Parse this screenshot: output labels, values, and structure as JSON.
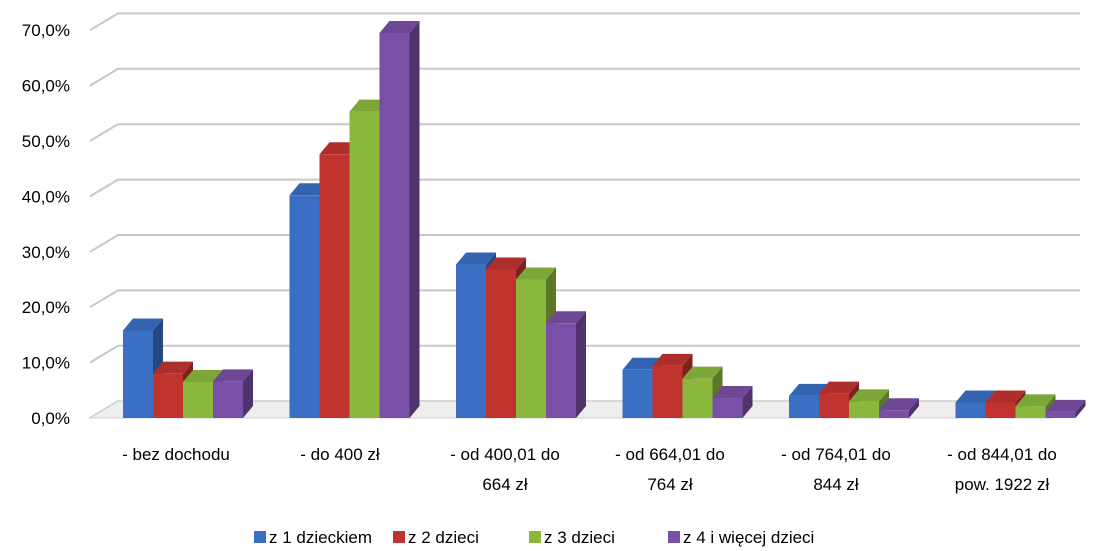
{
  "chart_data": {
    "type": "bar",
    "categories": [
      [
        "- bez dochodu"
      ],
      [
        "- do 400 zł"
      ],
      [
        "- od 400,01 do",
        "664 zł"
      ],
      [
        "- od 664,01 do",
        "764 zł"
      ],
      [
        "- od 764,01 do",
        "844 zł"
      ],
      [
        "- od 844,01 do",
        "pow. 1922 zł"
      ]
    ],
    "series": [
      {
        "name": "z 1 dzieckiem",
        "color": "#3a6fc4",
        "values": [
          15.8,
          40.2,
          27.7,
          8.7,
          4.0,
          2.8
        ]
      },
      {
        "name": "z 2 dzieci",
        "color": "#c0332f",
        "values": [
          8.0,
          47.6,
          26.8,
          9.4,
          4.4,
          2.8
        ]
      },
      {
        "name": "z 3 dzieci",
        "color": "#8ab83d",
        "values": [
          6.5,
          55.3,
          25.0,
          7.1,
          3.0,
          2.1
        ]
      },
      {
        "name": "z 4 i więcej dzieci",
        "color": "#7a4fa6",
        "values": [
          6.6,
          69.5,
          17.1,
          3.6,
          1.4,
          1.1
        ]
      }
    ],
    "yticks": [
      "0,0%",
      "10,0%",
      "20,0%",
      "30,0%",
      "40,0%",
      "50,0%",
      "60,0%",
      "70,0%"
    ],
    "ylim": [
      0,
      70
    ],
    "grid": true,
    "legend": "bottom"
  }
}
